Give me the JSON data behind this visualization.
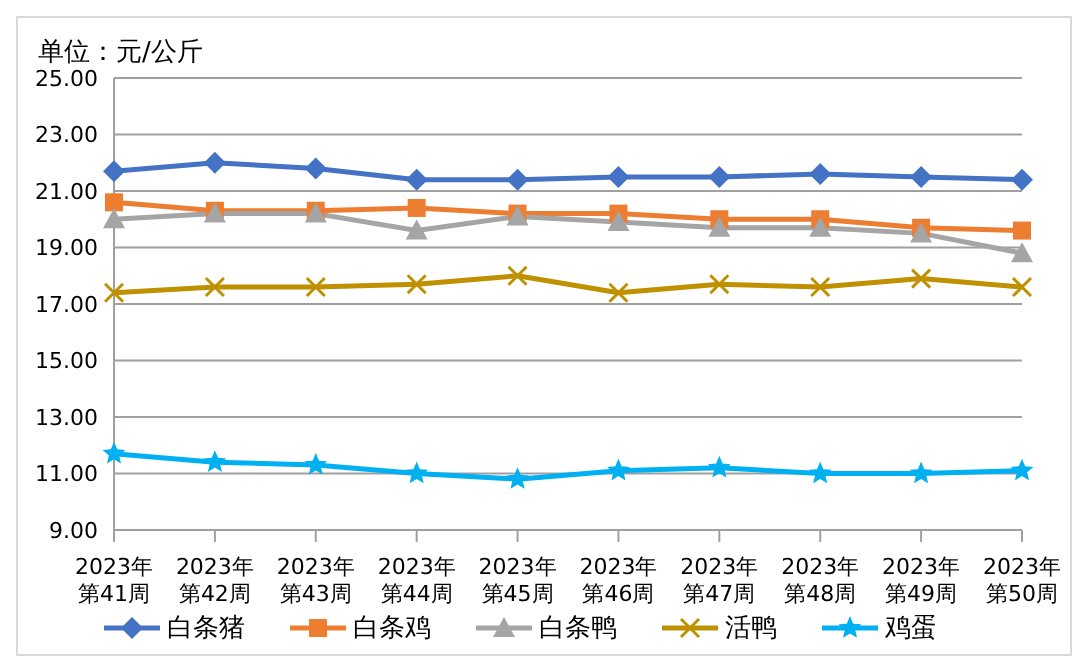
{
  "chart_data": {
    "type": "line",
    "title": "单位：元/公斤",
    "categories": [
      "2023年第41周",
      "2023年第42周",
      "2023年第43周",
      "2023年第44周",
      "2023年第45周",
      "2023年第46周",
      "2023年第47周",
      "2023年第48周",
      "2023年第49周",
      "2023年第50周"
    ],
    "series": [
      {
        "name": "白条猪",
        "color": "#4472c4",
        "marker": "diamond",
        "values": [
          21.7,
          22.0,
          21.8,
          21.4,
          21.4,
          21.5,
          21.5,
          21.6,
          21.5,
          21.4
        ]
      },
      {
        "name": "白条鸡",
        "color": "#ed7d31",
        "marker": "square",
        "values": [
          20.6,
          20.3,
          20.3,
          20.4,
          20.2,
          20.2,
          20.0,
          20.0,
          19.7,
          19.6
        ]
      },
      {
        "name": "白条鸭",
        "color": "#a5a5a5",
        "marker": "triangle",
        "values": [
          20.0,
          20.2,
          20.2,
          19.6,
          20.1,
          19.9,
          19.7,
          19.7,
          19.5,
          18.8
        ]
      },
      {
        "name": "活鸭",
        "color": "#bf9000",
        "marker": "cross",
        "values": [
          17.4,
          17.6,
          17.6,
          17.7,
          18.0,
          17.4,
          17.7,
          17.6,
          17.9,
          17.6
        ]
      },
      {
        "name": "鸡蛋",
        "color": "#00b0f0",
        "marker": "star",
        "values": [
          11.7,
          11.4,
          11.3,
          11.0,
          10.8,
          11.1,
          11.2,
          11.0,
          11.0,
          11.1
        ]
      }
    ],
    "ylim": [
      9,
      25
    ],
    "yticks": [
      {
        "value": 9,
        "label": "9.00"
      },
      {
        "value": 11,
        "label": "11.00"
      },
      {
        "value": 13,
        "label": "13.00"
      },
      {
        "value": 15,
        "label": "15.00"
      },
      {
        "value": 17,
        "label": "17.00"
      },
      {
        "value": 19,
        "label": "19.00"
      },
      {
        "value": 21,
        "label": "21.00"
      },
      {
        "value": 23,
        "label": "23.00"
      },
      {
        "value": 25,
        "label": "25.00"
      }
    ],
    "grid": "y",
    "legend": "bottom",
    "line_style": "solid"
  }
}
